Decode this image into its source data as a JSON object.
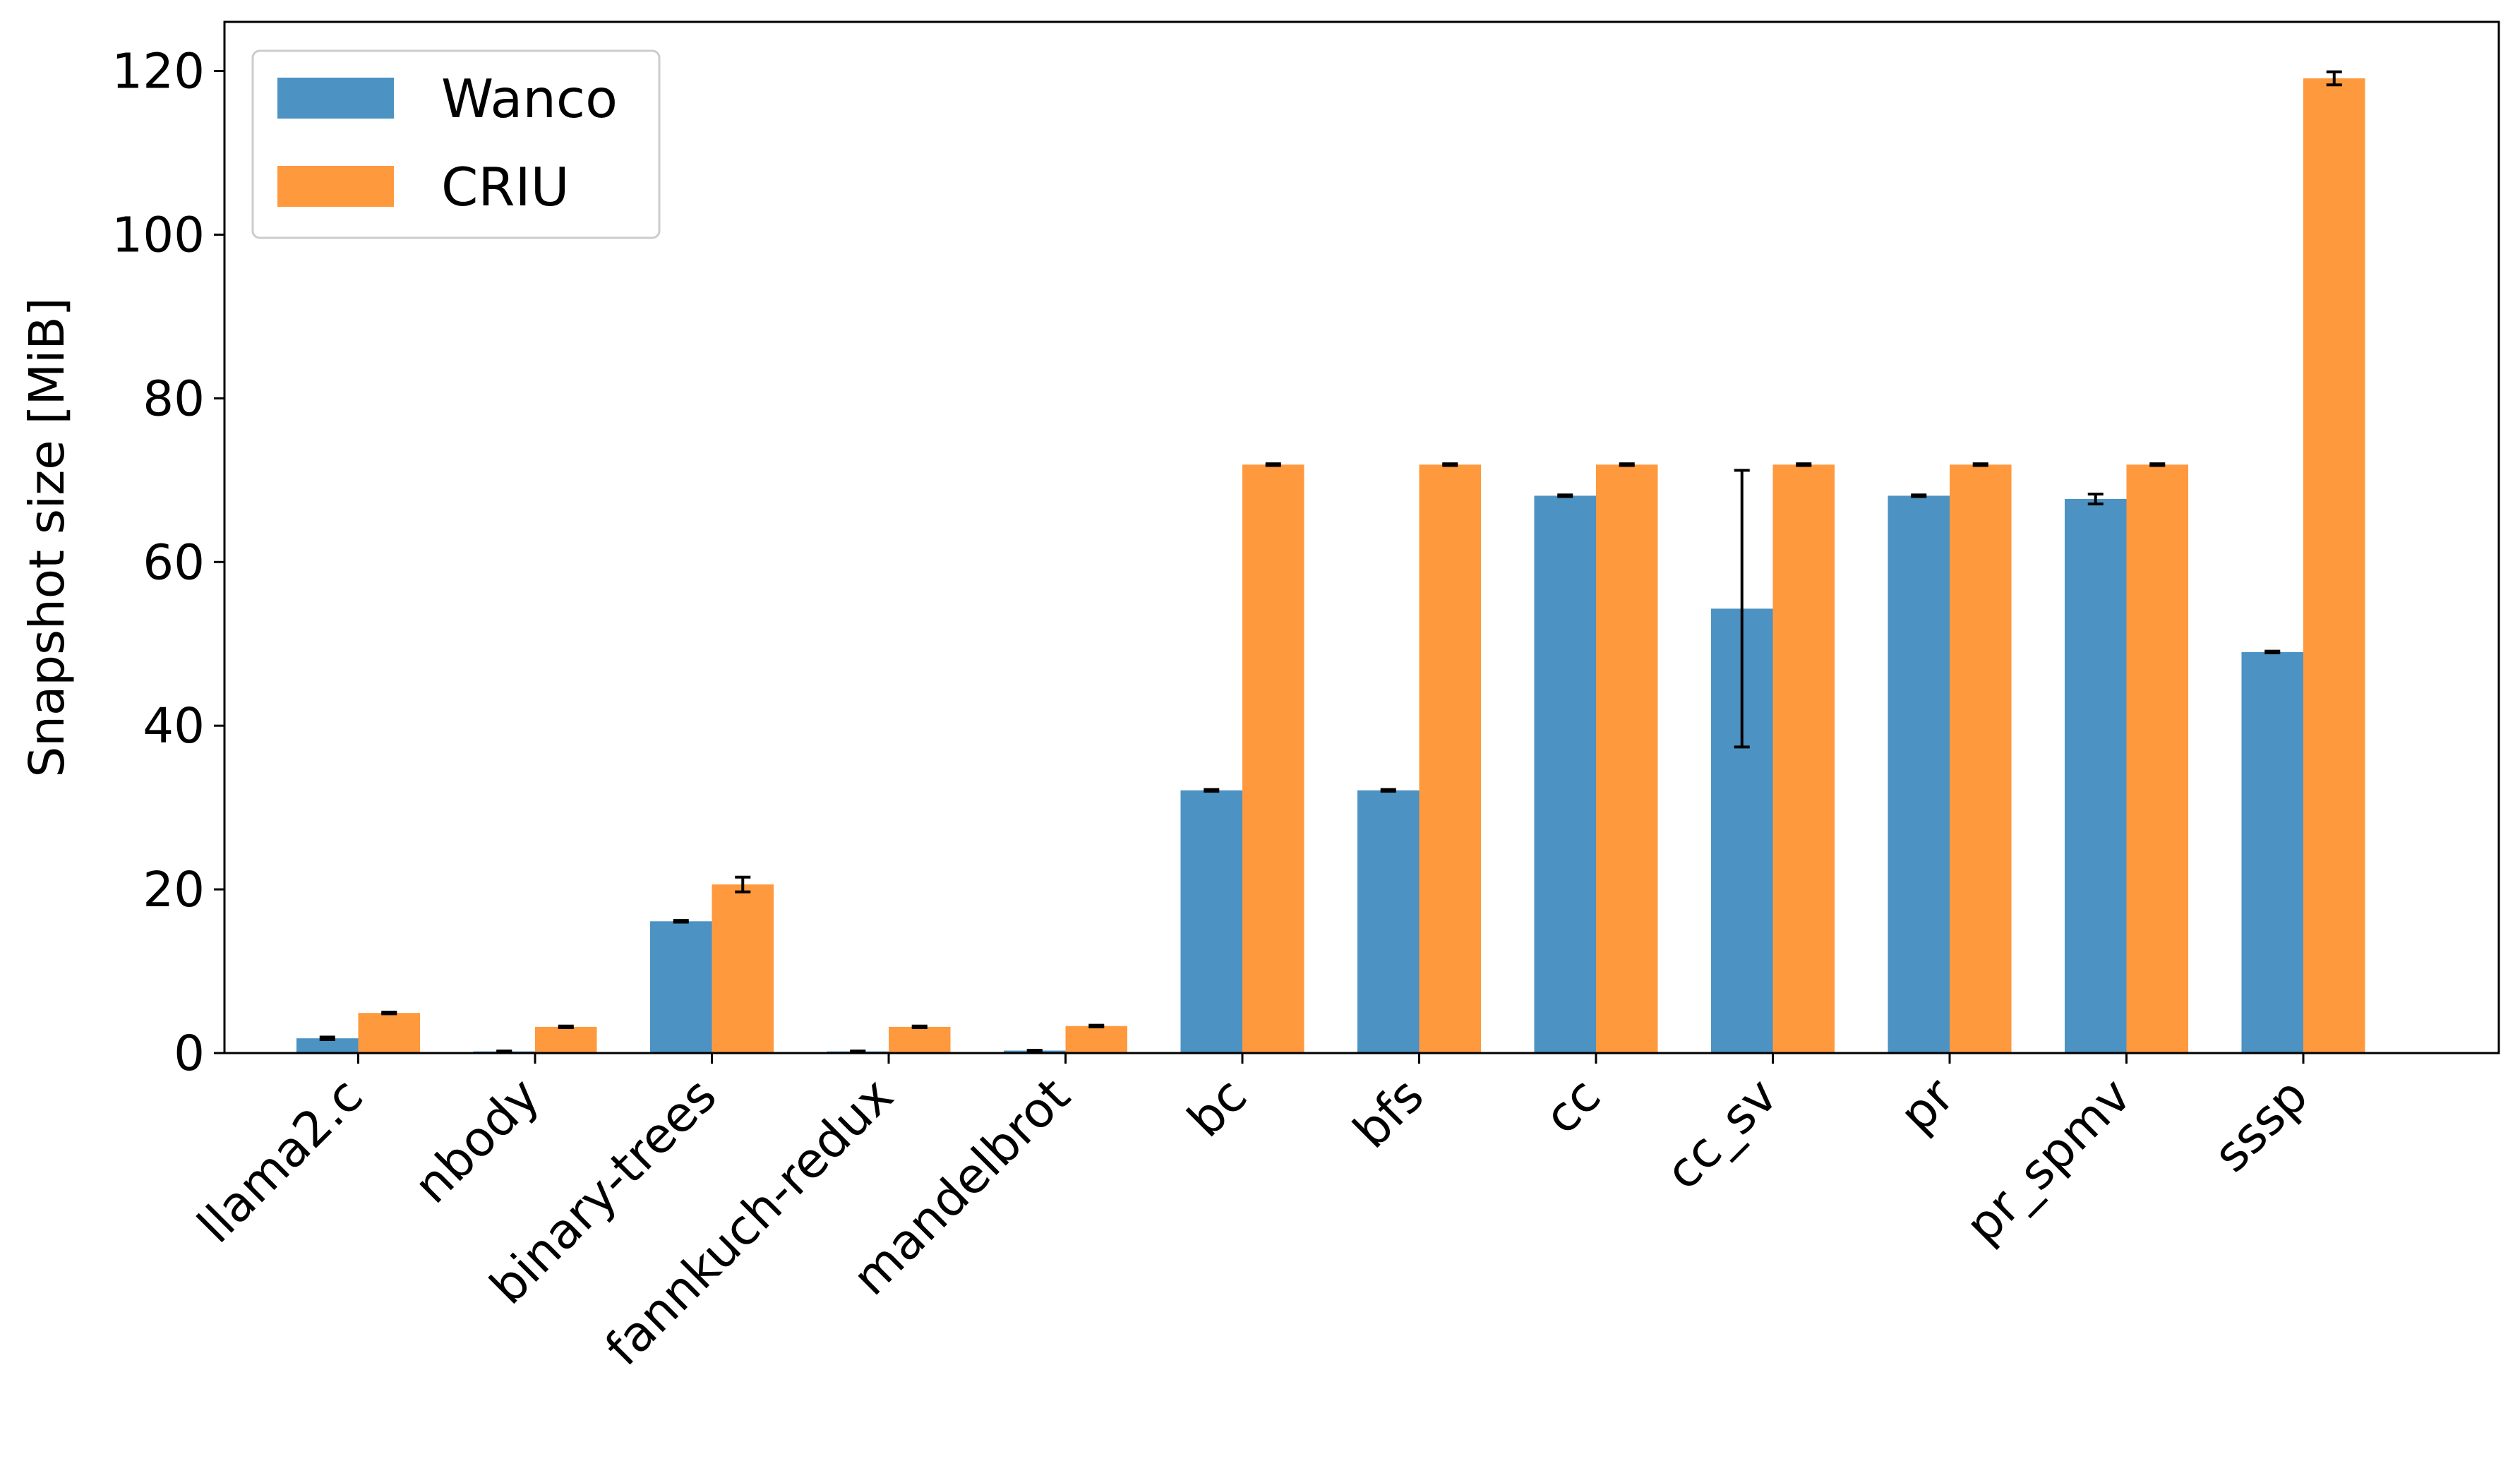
{
  "chart_data": {
    "type": "bar",
    "title": "",
    "xlabel": "",
    "ylabel": "Snapshot size [MiB]",
    "ylim": [
      0,
      126
    ],
    "yticks": [
      0,
      20,
      40,
      60,
      80,
      100,
      120
    ],
    "ytick_labels": [
      "0",
      "20",
      "40",
      "60",
      "80",
      "100",
      "120"
    ],
    "grid": false,
    "legend_position": "top-left",
    "categories": [
      "llama2.c",
      "nbody",
      "binary-trees",
      "fannkuch-redux",
      "mandelbrot",
      "bc",
      "bfs",
      "cc",
      "cc_sv",
      "pr",
      "pr_spmv",
      "sssp"
    ],
    "series": [
      {
        "name": "Wanco",
        "color": "#4c92c3",
        "values": [
          1.8,
          0.2,
          16.1,
          0.2,
          0.3,
          32.1,
          32.1,
          68.1,
          54.3,
          68.1,
          67.7,
          49.0
        ],
        "errors": [
          0.15,
          0.05,
          0.1,
          0.05,
          0.05,
          0.1,
          0.1,
          0.1,
          16.9,
          0.1,
          0.6,
          0.1
        ]
      },
      {
        "name": "CRIU",
        "color": "#ff993e",
        "values": [
          4.9,
          3.2,
          20.6,
          3.2,
          3.3,
          71.9,
          71.9,
          71.9,
          71.9,
          71.9,
          71.9,
          119.1
        ],
        "errors": [
          0.1,
          0.1,
          0.9,
          0.1,
          0.1,
          0.1,
          0.1,
          0.1,
          0.1,
          0.1,
          0.1,
          0.8
        ]
      }
    ]
  }
}
